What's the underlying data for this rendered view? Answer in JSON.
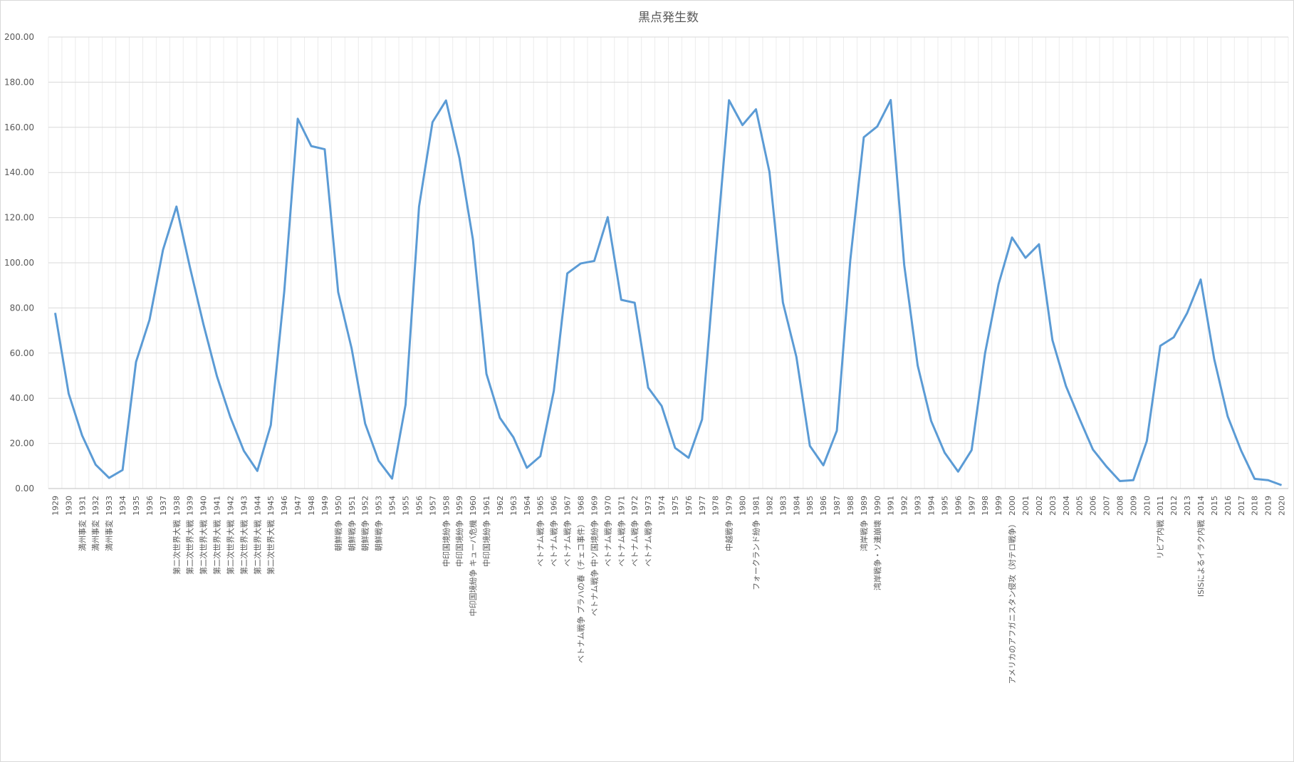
{
  "chart_data": {
    "type": "line",
    "title": "黒点発生数",
    "xlabel": "",
    "ylabel": "",
    "ylim": [
      0,
      200
    ],
    "yticks": [
      "0.00",
      "20.00",
      "40.00",
      "60.00",
      "80.00",
      "100.00",
      "120.00",
      "140.00",
      "160.00",
      "180.00",
      "200.00"
    ],
    "grid": true,
    "legend": "none",
    "line_color": "#5b9bd5",
    "categories": [
      "1929",
      "1930",
      "1931",
      "1932",
      "1933",
      "1934",
      "1935",
      "1936",
      "1937",
      "1938",
      "1939",
      "1940",
      "1941",
      "1942",
      "1943",
      "1944",
      "1945",
      "1946",
      "1947",
      "1948",
      "1949",
      "1950",
      "1951",
      "1952",
      "1953",
      "1954",
      "1955",
      "1956",
      "1957",
      "1958",
      "1959",
      "1960",
      "1961",
      "1962",
      "1963",
      "1964",
      "1965",
      "1966",
      "1967",
      "1968",
      "1969",
      "1970",
      "1971",
      "1972",
      "1973",
      "1974",
      "1975",
      "1976",
      "1977",
      "1978",
      "1979",
      "1980",
      "1981",
      "1982",
      "1983",
      "1984",
      "1985",
      "1986",
      "1987",
      "1988",
      "1989",
      "1990",
      "1991",
      "1992",
      "1993",
      "1994",
      "1995",
      "1996",
      "1997",
      "1998",
      "1999",
      "2000",
      "2001",
      "2002",
      "2003",
      "2004",
      "2005",
      "2006",
      "2007",
      "2008",
      "2009",
      "2010",
      "2011",
      "2012",
      "2013",
      "2014",
      "2015",
      "2016",
      "2017",
      "2018",
      "2019",
      "2020"
    ],
    "events": [
      "",
      "",
      "満州事変",
      "満州事変",
      "満州事変",
      "",
      "",
      "",
      "",
      "第二次世界大戦",
      "第二次世界大戦",
      "第二次世界大戦",
      "第二次世界大戦",
      "第二次世界大戦",
      "第二次世界大戦",
      "第二次世界大戦",
      "第二次世界大戦",
      "",
      "",
      "",
      "",
      "朝鮮戦争",
      "朝鮮戦争",
      "朝鮮戦争",
      "朝鮮戦争",
      "",
      "",
      "",
      "",
      "中印国境紛争",
      "中印国境紛争",
      "中印国境紛争 キューバ危機",
      "中印国境紛争",
      "",
      "",
      "",
      "ベトナム戦争",
      "ベトナム戦争",
      "ベトナム戦争",
      "ベトナム戦争 プラハの春（チェコ事件）",
      "ベトナム戦争 中ソ国境紛争",
      "ベトナム戦争",
      "ベトナム戦争",
      "ベトナム戦争",
      "ベトナム戦争",
      "",
      "",
      "",
      "",
      "",
      "中越戦争",
      "",
      "フォークランド紛争",
      "",
      "",
      "",
      "",
      "",
      "",
      "",
      "湾岸戦争",
      "湾岸戦争・ソ連崩壊",
      "",
      "",
      "",
      "",
      "",
      "",
      "",
      "",
      "",
      "アメリカのアフガニスタン侵攻（対テロ戦争）",
      "",
      "",
      "",
      "",
      "",
      "",
      "",
      "",
      "",
      "",
      "リビア内戦",
      "",
      "",
      "ISISによるイラク内戦",
      "",
      "",
      "",
      "",
      "",
      ""
    ],
    "values": [
      77.8,
      42.1,
      23.5,
      10.6,
      4.7,
      8.2,
      56.1,
      74.7,
      105.7,
      124.9,
      98.0,
      72.8,
      49.8,
      31.6,
      16.7,
      7.8,
      28.1,
      87.4,
      163.8,
      151.7,
      150.3,
      87.0,
      62.0,
      28.8,
      12.3,
      4.4,
      37.1,
      124.9,
      162.3,
      171.9,
      146.3,
      110.2,
      50.8,
      31.3,
      22.7,
      9.2,
      14.3,
      43.2,
      95.3,
      99.7,
      100.8,
      120.2,
      83.6,
      82.3,
      44.7,
      36.6,
      18.0,
      13.6,
      30.6,
      102.8,
      172.0,
      161.0,
      168.0,
      140.3,
      82.4,
      58.3,
      18.9,
      10.3,
      25.6,
      101.2,
      155.6,
      160.4,
      172.1,
      99.0,
      54.5,
      29.9,
      15.9,
      7.5,
      17.0,
      60.0,
      90.5,
      111.2,
      102.2,
      108.2,
      65.7,
      45.4,
      31.0,
      17.3,
      9.8,
      3.3,
      3.7,
      21.0,
      63.2,
      67.0,
      77.8,
      92.6,
      57.4,
      32.0,
      16.8,
      4.3,
      3.7,
      1.5
    ]
  }
}
